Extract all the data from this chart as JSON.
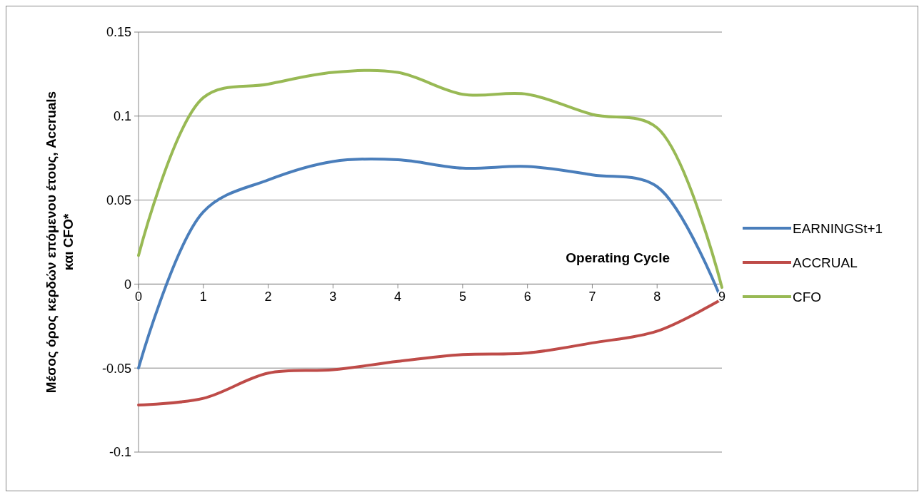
{
  "chart_data": {
    "type": "line",
    "xlabel": "Operating Cycle",
    "ylabel": "Μέσος όρος κερδών επόμενου έτους, Accruals και CFO*",
    "x": [
      0,
      1,
      2,
      3,
      4,
      5,
      6,
      7,
      8,
      9
    ],
    "series": [
      {
        "name": "EARNINGSt+1",
        "color": "#4a7ebb",
        "values": [
          -0.05,
          0.043,
          0.062,
          0.073,
          0.074,
          0.069,
          0.07,
          0.065,
          0.058,
          -0.01
        ]
      },
      {
        "name": "ACCRUAL",
        "color": "#be4b48",
        "values": [
          -0.072,
          -0.068,
          -0.053,
          -0.051,
          -0.046,
          -0.042,
          -0.041,
          -0.035,
          -0.028,
          -0.009
        ]
      },
      {
        "name": "CFO",
        "color": "#98b954",
        "values": [
          0.017,
          0.111,
          0.119,
          0.126,
          0.126,
          0.113,
          0.113,
          0.101,
          0.093,
          -0.002
        ]
      }
    ],
    "xlim": [
      0,
      9
    ],
    "xticks": [
      0,
      1,
      2,
      3,
      4,
      5,
      6,
      7,
      8,
      9
    ],
    "ylim": [
      -0.1,
      0.15
    ],
    "yticks": [
      -0.1,
      -0.05,
      0,
      0.05,
      0.1,
      0.15
    ],
    "grid": "y",
    "legend": "right",
    "marker": "none",
    "line_style": "solid"
  }
}
